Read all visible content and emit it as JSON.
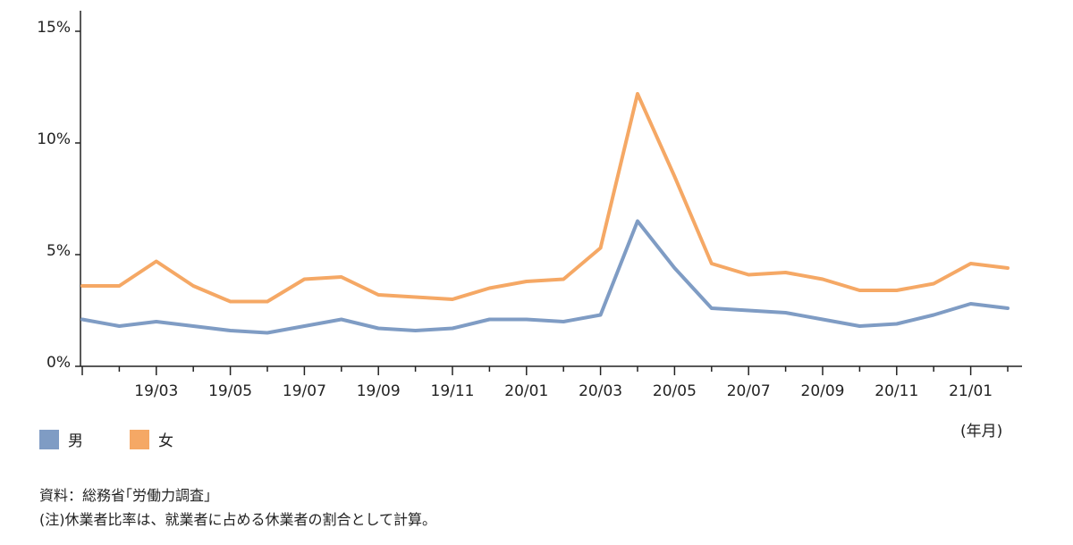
{
  "chart_data": {
    "type": "line",
    "x": [
      "19/01",
      "19/02",
      "19/03",
      "19/04",
      "19/05",
      "19/06",
      "19/07",
      "19/08",
      "19/09",
      "19/10",
      "19/11",
      "19/12",
      "20/01",
      "20/02",
      "20/03",
      "20/04",
      "20/05",
      "20/06",
      "20/07",
      "20/08",
      "20/09",
      "20/10",
      "20/11",
      "20/12",
      "21/01",
      "21/02"
    ],
    "x_tick_labels": [
      "19/03",
      "19/05",
      "19/07",
      "19/09",
      "19/11",
      "20/01",
      "20/03",
      "20/05",
      "20/07",
      "20/09",
      "20/11",
      "21/01"
    ],
    "y_tick_labels": [
      "0%",
      "5%",
      "10%",
      "15%"
    ],
    "ylim": [
      0,
      15
    ],
    "y_unit": "%",
    "xlabel": "(年月)",
    "grid": false,
    "legend_position": "bottom-left",
    "series": [
      {
        "name": "男",
        "color": "#7f9cc4",
        "values": [
          2.1,
          1.8,
          2.0,
          1.8,
          1.6,
          1.5,
          1.8,
          2.1,
          1.7,
          1.6,
          1.7,
          2.1,
          2.1,
          2.0,
          2.3,
          6.5,
          4.4,
          2.6,
          2.5,
          2.4,
          2.1,
          1.8,
          1.9,
          2.3,
          2.8,
          2.6
        ]
      },
      {
        "name": "女",
        "color": "#f5a865",
        "values": [
          3.6,
          3.6,
          4.7,
          3.6,
          2.9,
          2.9,
          3.9,
          4.0,
          3.2,
          3.1,
          3.0,
          3.5,
          3.8,
          3.9,
          5.3,
          12.2,
          8.5,
          4.6,
          4.1,
          4.2,
          3.9,
          3.4,
          3.4,
          3.7,
          4.6,
          4.4
        ]
      }
    ]
  },
  "notes": {
    "source": "資料：総務省｢労働力調査｣",
    "footnote": "(注)休業者比率は、就業者に占める休業者の割合として計算。"
  }
}
